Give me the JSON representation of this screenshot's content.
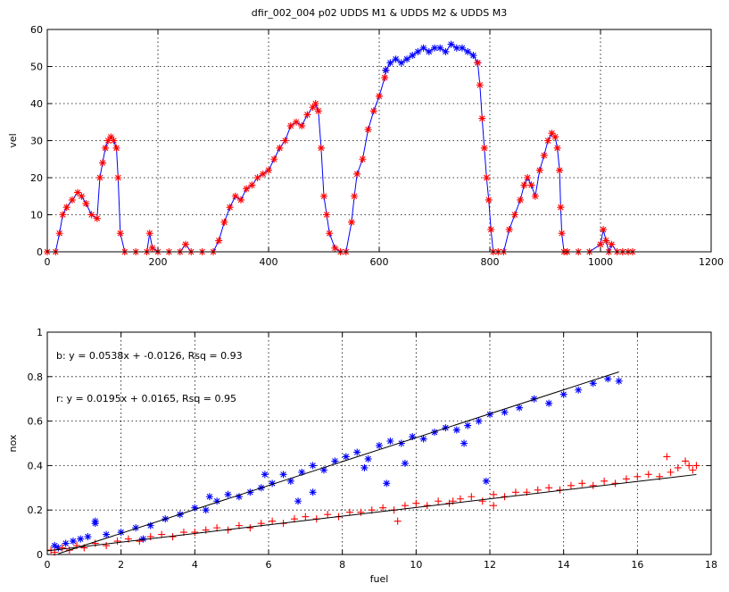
{
  "figure_title": "dfir_002_004  p02 UDDS M1 & UDDS M2 & UDDS M3",
  "colors": {
    "red": "#ff0000",
    "blue": "#0000ff",
    "fit": "#000000"
  },
  "chart_data": [
    {
      "type": "line",
      "ylabel": "vel",
      "xlabel": "",
      "xlim": [
        0,
        1200
      ],
      "ylim": [
        0,
        60
      ],
      "xticks": [
        0,
        200,
        400,
        600,
        800,
        1000,
        1200
      ],
      "yticks": [
        0,
        10,
        20,
        30,
        40,
        50,
        60
      ],
      "grid": true,
      "marker": "*",
      "series": [
        {
          "color": "red",
          "x": [
            0,
            15,
            22,
            28,
            35,
            45,
            55,
            62,
            70,
            80,
            90,
            95,
            100,
            105,
            110,
            115,
            120,
            125,
            128,
            132,
            140,
            160,
            180,
            185,
            190,
            200,
            220,
            240,
            250,
            260,
            280,
            300,
            310,
            320,
            330,
            340,
            350,
            360,
            370,
            380,
            390,
            400,
            410,
            420,
            430,
            440,
            450,
            460,
            470,
            480,
            485,
            490,
            495,
            500,
            505,
            510,
            520,
            530,
            540,
            550,
            555,
            560,
            570,
            580,
            590,
            600,
            610,
            612
          ],
          "y": [
            0,
            0,
            5,
            10,
            12,
            14,
            16,
            15,
            13,
            10,
            9,
            20,
            24,
            28,
            30,
            31,
            30,
            28,
            20,
            5,
            0,
            0,
            0,
            5,
            1,
            0,
            0,
            0,
            2,
            0,
            0,
            0,
            3,
            8,
            12,
            15,
            14,
            17,
            18,
            20,
            21,
            22,
            25,
            28,
            30,
            34,
            35,
            34,
            37,
            39,
            40,
            38,
            28,
            15,
            10,
            5,
            1,
            0,
            0,
            8,
            15,
            21,
            25,
            33,
            38,
            42,
            47,
            49
          ]
        },
        {
          "color": "blue",
          "x": [
            612,
            620,
            630,
            640,
            650,
            660,
            670,
            680,
            690,
            700,
            710,
            720,
            730,
            740,
            750,
            760,
            770,
            778
          ],
          "y": [
            49,
            51,
            52,
            51,
            52,
            53,
            54,
            55,
            54,
            55,
            55,
            54,
            56,
            55,
            55,
            54,
            53,
            51
          ]
        },
        {
          "color": "red",
          "x": [
            778,
            782,
            786,
            790,
            794,
            798,
            802,
            806,
            815,
            825,
            835,
            845,
            855,
            862,
            868,
            875,
            882,
            890,
            898,
            905,
            912,
            918,
            922,
            926,
            928,
            930,
            934,
            940,
            960,
            980,
            1000,
            1005,
            1010,
            1015,
            1020,
            1030,
            1040,
            1050,
            1058
          ],
          "y": [
            51,
            45,
            36,
            28,
            20,
            14,
            6,
            0,
            0,
            0,
            6,
            10,
            14,
            18,
            20,
            18,
            15,
            22,
            26,
            30,
            32,
            31,
            28,
            22,
            12,
            5,
            0,
            0,
            0,
            0,
            2,
            6,
            3,
            0,
            2,
            0,
            0,
            0,
            0
          ]
        }
      ]
    },
    {
      "type": "scatter",
      "ylabel": "nox",
      "xlabel": "fuel",
      "xlim": [
        0,
        18
      ],
      "ylim": [
        0,
        1
      ],
      "xticks": [
        0,
        2,
        4,
        6,
        8,
        10,
        12,
        14,
        16,
        18
      ],
      "yticks": [
        0,
        0.2,
        0.4,
        0.6,
        0.8,
        1
      ],
      "grid": true,
      "annotations": [
        "b: y = 0.0538x + -0.0126, Rsq = 0.93",
        "r: y = 0.0195x + 0.0165, Rsq = 0.95"
      ],
      "series": [
        {
          "color": "blue",
          "marker": "*",
          "x": [
            0.2,
            0.3,
            0.5,
            0.7,
            0.9,
            1.1,
            1.3,
            1.6,
            2.0,
            2.4,
            2.8,
            3.2,
            3.6,
            4.0,
            4.3,
            4.6,
            4.9,
            5.2,
            5.5,
            5.8,
            6.1,
            6.4,
            6.6,
            6.9,
            7.2,
            7.5,
            7.8,
            8.1,
            8.4,
            8.7,
            9.0,
            9.3,
            9.6,
            9.9,
            10.2,
            10.5,
            10.8,
            11.1,
            11.4,
            11.7,
            12.0,
            12.4,
            12.8,
            13.2,
            13.6,
            14.0,
            14.4,
            14.8,
            15.2,
            15.5,
            1.3,
            2.6,
            4.4,
            5.9,
            6.8,
            7.2,
            8.6,
            9.2,
            9.7,
            11.3,
            11.9
          ],
          "y": [
            0.04,
            0.03,
            0.05,
            0.06,
            0.07,
            0.08,
            0.14,
            0.09,
            0.1,
            0.12,
            0.13,
            0.16,
            0.18,
            0.21,
            0.2,
            0.24,
            0.27,
            0.26,
            0.28,
            0.3,
            0.32,
            0.36,
            0.33,
            0.37,
            0.4,
            0.38,
            0.42,
            0.44,
            0.46,
            0.43,
            0.49,
            0.51,
            0.5,
            0.53,
            0.52,
            0.55,
            0.57,
            0.56,
            0.58,
            0.6,
            0.63,
            0.64,
            0.66,
            0.7,
            0.68,
            0.72,
            0.74,
            0.77,
            0.79,
            0.78,
            0.15,
            0.07,
            0.26,
            0.36,
            0.24,
            0.28,
            0.39,
            0.32,
            0.41,
            0.5,
            0.33
          ]
        },
        {
          "color": "red",
          "marker": "+",
          "x": [
            0.1,
            0.2,
            0.4,
            0.6,
            0.8,
            1.0,
            1.3,
            1.6,
            1.9,
            2.2,
            2.5,
            2.8,
            3.1,
            3.4,
            3.7,
            4.0,
            4.3,
            4.6,
            4.9,
            5.2,
            5.5,
            5.8,
            6.1,
            6.4,
            6.7,
            7.0,
            7.3,
            7.6,
            7.9,
            8.2,
            8.5,
            8.8,
            9.1,
            9.4,
            9.7,
            10.0,
            10.3,
            10.6,
            10.9,
            11.2,
            11.5,
            11.8,
            12.1,
            12.4,
            12.7,
            13.0,
            13.3,
            13.6,
            13.9,
            14.2,
            14.5,
            14.8,
            15.1,
            15.4,
            15.7,
            16.0,
            16.3,
            16.6,
            16.9,
            17.1,
            17.3,
            17.4,
            17.5,
            17.6,
            9.5,
            11.0,
            12.1,
            16.8
          ],
          "y": [
            0.02,
            0.01,
            0.03,
            0.02,
            0.04,
            0.03,
            0.05,
            0.04,
            0.06,
            0.07,
            0.06,
            0.08,
            0.09,
            0.08,
            0.1,
            0.1,
            0.11,
            0.12,
            0.11,
            0.13,
            0.12,
            0.14,
            0.15,
            0.14,
            0.16,
            0.17,
            0.16,
            0.18,
            0.17,
            0.19,
            0.19,
            0.2,
            0.21,
            0.2,
            0.22,
            0.23,
            0.22,
            0.24,
            0.23,
            0.25,
            0.26,
            0.24,
            0.27,
            0.26,
            0.28,
            0.28,
            0.29,
            0.3,
            0.29,
            0.31,
            0.32,
            0.31,
            0.33,
            0.32,
            0.34,
            0.35,
            0.36,
            0.35,
            0.37,
            0.39,
            0.42,
            0.4,
            0.38,
            0.4,
            0.15,
            0.24,
            0.22,
            0.44
          ]
        }
      ],
      "fits": [
        {
          "color": "fit",
          "slope": 0.0538,
          "intercept": -0.0126,
          "x0": 0.3,
          "x1": 15.5
        },
        {
          "color": "fit",
          "slope": 0.0195,
          "intercept": 0.0165,
          "x0": 0,
          "x1": 17.6
        }
      ]
    }
  ]
}
